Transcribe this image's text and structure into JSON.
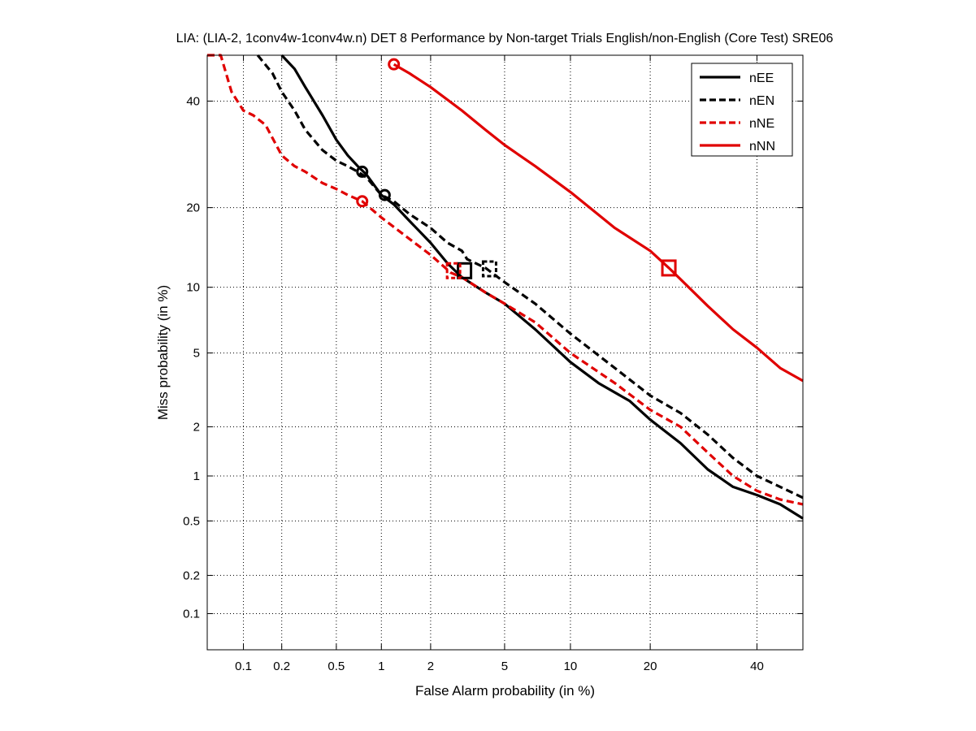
{
  "chart_data": {
    "type": "line",
    "title": "LIA: (LIA-2, 1conv4w-1conv4w.n) DET 8 Performance by Non-target Trials English/non-English (Core Test) SRE06",
    "xlabel": "False Alarm probability (in %)",
    "ylabel": "Miss probability (in %)",
    "x_scale": "probit",
    "y_scale": "probit",
    "xlim": [
      0.05,
      50
    ],
    "ylim": [
      0.05,
      50
    ],
    "x_ticks": [
      0.1,
      0.2,
      0.5,
      1,
      2,
      5,
      10,
      20,
      40
    ],
    "x_tick_labels": [
      "0.1",
      "0.2",
      "0.5",
      "1",
      "2",
      "5",
      "10",
      "20",
      "40"
    ],
    "y_ticks": [
      0.1,
      0.2,
      0.5,
      1,
      2,
      5,
      10,
      20,
      40
    ],
    "y_tick_labels": [
      "0.1",
      "0.2",
      "0.5",
      "1",
      "2",
      "5",
      "10",
      "20",
      "40"
    ],
    "grid": true,
    "legend_position": "top-right",
    "series": [
      {
        "name": "nEE",
        "color": "#000000",
        "dashed": false,
        "x": [
          0.2,
          0.25,
          0.3,
          0.4,
          0.5,
          0.6,
          0.7,
          0.8,
          1.0,
          1.2,
          1.5,
          2.0,
          2.5,
          3.0,
          4.0,
          5.0,
          7.0,
          10.0,
          13.0,
          17.0,
          20.0,
          25.0,
          30.0,
          35.0,
          40.0,
          45.0,
          50.0
        ],
        "y": [
          50,
          47,
          43,
          37,
          32,
          29,
          27,
          25.5,
          22,
          20.5,
          18,
          15,
          12.5,
          11,
          9.5,
          8.5,
          6.5,
          4.5,
          3.5,
          2.8,
          2.2,
          1.6,
          1.1,
          0.85,
          0.75,
          0.65,
          0.52
        ]
      },
      {
        "name": "nEN",
        "color": "#000000",
        "dashed": true,
        "x": [
          0.13,
          0.17,
          0.2,
          0.25,
          0.3,
          0.4,
          0.5,
          0.6,
          0.7,
          0.8,
          1.0,
          1.2,
          1.5,
          2.0,
          2.5,
          3.0,
          3.2,
          4.0,
          5.0,
          7.0,
          10.0,
          15.0,
          20.0,
          25.0,
          30.0,
          35.0,
          40.0,
          45.0,
          50.0
        ],
        "y": [
          50,
          46,
          42,
          38,
          34,
          30,
          28,
          27,
          26,
          25,
          22,
          21,
          19,
          17,
          15,
          14,
          13,
          12,
          10.5,
          8.5,
          6.2,
          4.2,
          3.0,
          2.4,
          1.8,
          1.3,
          1.0,
          0.85,
          0.72
        ]
      },
      {
        "name": "nNE",
        "color": "#e00000",
        "dashed": true,
        "x": [
          0.05,
          0.065,
          0.08,
          0.1,
          0.12,
          0.15,
          0.2,
          0.25,
          0.3,
          0.4,
          0.5,
          0.6,
          0.75,
          1.0,
          1.5,
          2.0,
          2.6,
          3.0,
          4.0,
          5.0,
          7.0,
          10.0,
          15.0,
          20.0,
          25.0,
          30.0,
          35.0,
          40.0,
          45.0,
          50.0
        ],
        "y": [
          50,
          50,
          42,
          38,
          37,
          35,
          29,
          27,
          26,
          24,
          23,
          22,
          21,
          18.5,
          15.5,
          13.5,
          11.5,
          11,
          9.5,
          8.5,
          7,
          5,
          3.5,
          2.5,
          2.0,
          1.4,
          1.0,
          0.8,
          0.7,
          0.65
        ]
      },
      {
        "name": "nNN",
        "color": "#e00000",
        "dashed": false,
        "x": [
          1.2,
          1.5,
          2.0,
          3.0,
          4.0,
          5.0,
          7.0,
          10.0,
          15.0,
          20.0,
          23.0,
          25.0,
          30.0,
          35.0,
          40.0,
          45.0,
          50.0
        ],
        "y": [
          48,
          46,
          43,
          38,
          34,
          31,
          27,
          22.5,
          17,
          14,
          12,
          10.8,
          8.3,
          6.5,
          5.3,
          4.2,
          3.6
        ]
      }
    ],
    "markers": [
      {
        "series": "nEE",
        "shape": "circle",
        "x": 0.75,
        "y": 26
      },
      {
        "series": "nEE",
        "shape": "square",
        "x": 3.1,
        "y": 11.7
      },
      {
        "series": "nEN",
        "shape": "circle",
        "x": 1.05,
        "y": 22
      },
      {
        "series": "nEN",
        "shape": "square",
        "x": 4.2,
        "y": 11.9
      },
      {
        "series": "nNE",
        "shape": "circle",
        "x": 0.75,
        "y": 21
      },
      {
        "series": "nNE",
        "shape": "square",
        "x": 2.7,
        "y": 11.7
      },
      {
        "series": "nNN",
        "shape": "circle",
        "x": 1.2,
        "y": 48
      },
      {
        "series": "nNN",
        "shape": "square",
        "x": 23,
        "y": 12
      }
    ]
  }
}
